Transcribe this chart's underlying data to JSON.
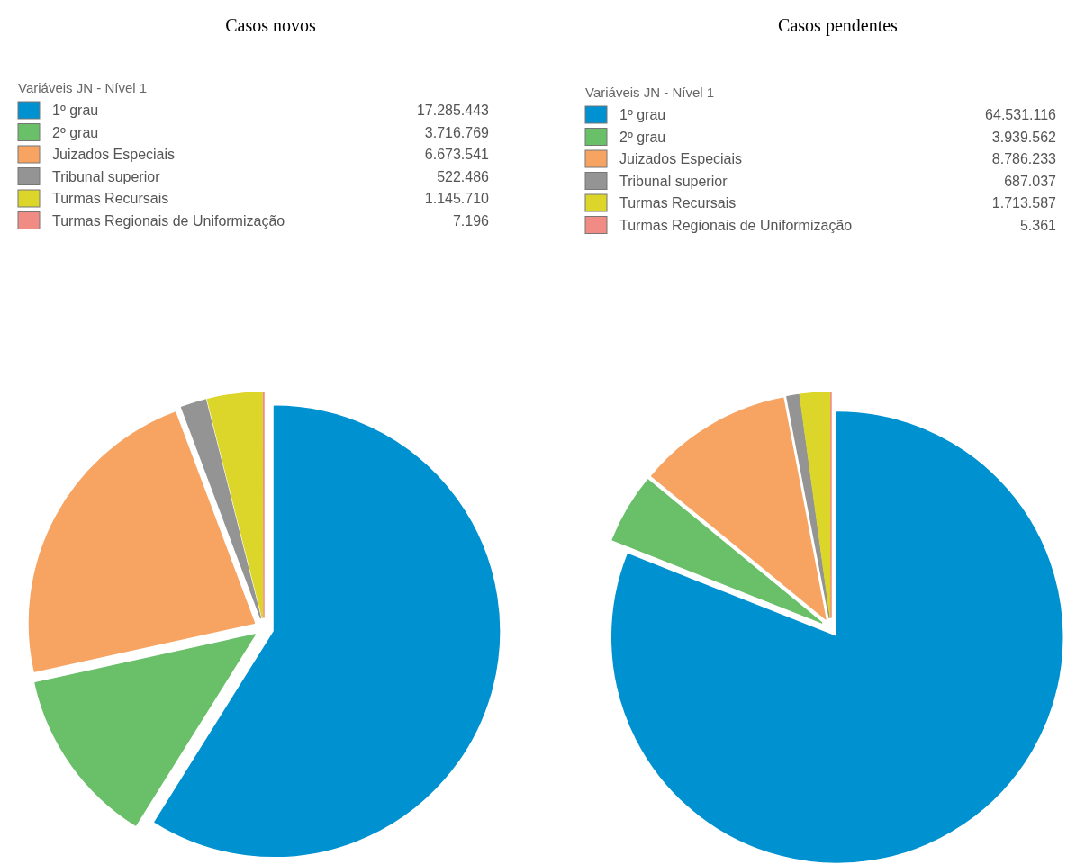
{
  "chart_data": [
    {
      "type": "pie",
      "title": "Casos novos",
      "legend_title": "Variáveis JN - Nível 1",
      "legend": "top",
      "categories": [
        "1º grau",
        "2º grau",
        "Juizados Especiais",
        "Tribunal superior",
        "Turmas Recursais",
        "Turmas Regionais de Uniformização"
      ],
      "values": [
        17285443,
        3716769,
        6673541,
        522486,
        1145710,
        7196
      ],
      "value_labels": [
        "17.285.443",
        "3.716.769",
        "6.673.541",
        "522.486",
        "1.145.710",
        "7.196"
      ],
      "colors": [
        "#0091d0",
        "#6abf69",
        "#f7a463",
        "#949494",
        "#dcd62a",
        "#f08c84"
      ]
    },
    {
      "type": "pie",
      "title": "Casos pendentes",
      "legend_title": "Variáveis JN - Nível 1",
      "legend": "top",
      "categories": [
        "1º grau",
        "2º grau",
        "Juizados Especiais",
        "Tribunal superior",
        "Turmas Recursais",
        "Turmas Regionais de Uniformização"
      ],
      "values": [
        64531116,
        3939562,
        8786233,
        687037,
        1713587,
        5361
      ],
      "value_labels": [
        "64.531.116",
        "3.939.562",
        "8.786.233",
        "687.037",
        "1.713.587",
        "5.361"
      ],
      "colors": [
        "#0091d0",
        "#6abf69",
        "#f7a463",
        "#949494",
        "#dcd62a",
        "#f08c84"
      ]
    }
  ]
}
